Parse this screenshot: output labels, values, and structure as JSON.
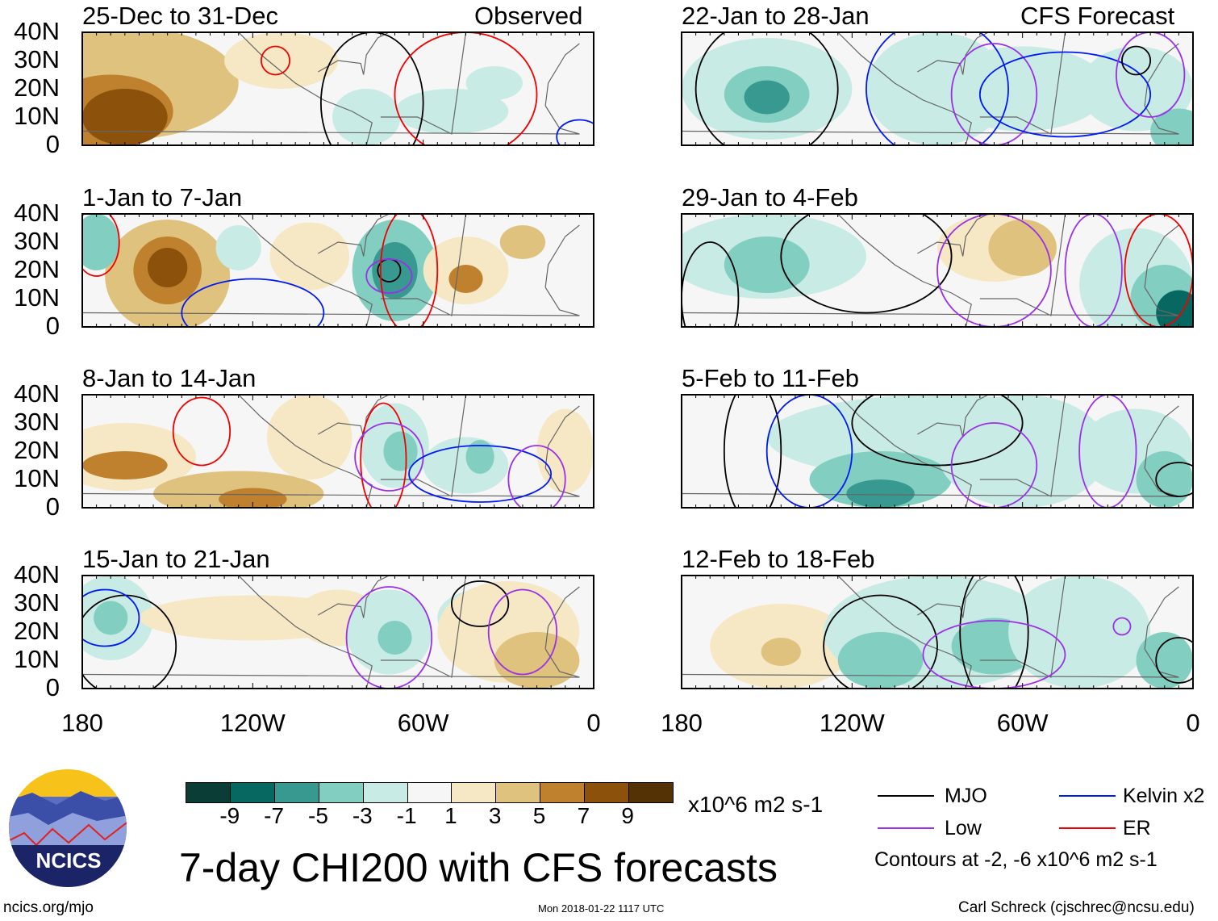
{
  "header": {
    "left_label": "Observed",
    "right_label": "CFS Forecast"
  },
  "lat_labels": [
    "40N",
    "30N",
    "20N",
    "10N",
    "0"
  ],
  "lon_labels": [
    "180",
    "120W",
    "60W",
    "0"
  ],
  "colors": {
    "-10": "#0a3d35",
    "-8": "#066860",
    "-6": "#379990",
    "-4": "#82cfc2",
    "-2": "#c8ebe5",
    "0": "#f6f6f6",
    "2": "#f6e8c4",
    "4": "#dfc27e",
    "6": "#bf812e",
    "8": "#8c510b",
    "10": "#553106"
  },
  "contour_colors": {
    "MJO": "#000000",
    "Low": "#9b30e8",
    "Kelvin": "#0019f5",
    "ER": "#f00000"
  },
  "panels": [
    {
      "title": "25-Dec to 31-Dec",
      "anom": [
        [
          -165,
          22,
          40,
          20,
          4
        ],
        [
          -170,
          12,
          22,
          13,
          6
        ],
        [
          -165,
          10,
          15,
          10,
          8
        ],
        [
          -110,
          30,
          20,
          10,
          2
        ],
        [
          -80,
          10,
          12,
          10,
          -2
        ],
        [
          -50,
          12,
          20,
          8,
          -2
        ],
        [
          -35,
          22,
          10,
          6,
          -2
        ]
      ],
      "cont": [
        [
          "ER",
          -112,
          30,
          5,
          5
        ],
        [
          "MJO",
          -78,
          15,
          18,
          25
        ],
        [
          "ER",
          -45,
          18,
          25,
          22
        ],
        [
          "Kelvin",
          -5,
          3,
          8,
          6
        ]
      ]
    },
    {
      "title": "1-Jan to 7-Jan",
      "anom": [
        [
          -150,
          18,
          22,
          20,
          4
        ],
        [
          -150,
          20,
          12,
          12,
          6
        ],
        [
          -150,
          21,
          7,
          7,
          8
        ],
        [
          -125,
          28,
          8,
          8,
          -3
        ],
        [
          -100,
          25,
          14,
          12,
          2
        ],
        [
          -70,
          20,
          15,
          18,
          -4
        ],
        [
          -70,
          20,
          8,
          10,
          -6
        ],
        [
          -45,
          20,
          15,
          12,
          2
        ],
        [
          -45,
          17,
          6,
          5,
          6
        ],
        [
          -25,
          30,
          8,
          6,
          4
        ],
        [
          -175,
          30,
          8,
          10,
          -4
        ]
      ],
      "cont": [
        [
          "ER",
          -175,
          30,
          8,
          12
        ],
        [
          "Kelvin",
          -120,
          5,
          25,
          12
        ],
        [
          "MJO",
          -72,
          20,
          4,
          4
        ],
        [
          "Low",
          -72,
          18,
          8,
          6
        ],
        [
          "ER",
          -65,
          20,
          10,
          22
        ]
      ]
    },
    {
      "title": "8-Jan to 14-Jan",
      "anom": [
        [
          -165,
          18,
          25,
          12,
          2
        ],
        [
          -165,
          15,
          15,
          5,
          6
        ],
        [
          -125,
          5,
          30,
          8,
          4
        ],
        [
          -120,
          3,
          12,
          4,
          6
        ],
        [
          -100,
          25,
          15,
          15,
          2
        ],
        [
          -70,
          22,
          12,
          15,
          -3
        ],
        [
          -68,
          20,
          6,
          7,
          -5
        ],
        [
          -45,
          15,
          15,
          10,
          -2
        ],
        [
          -40,
          18,
          5,
          6,
          -4
        ],
        [
          -10,
          20,
          10,
          15,
          2
        ]
      ],
      "cont": [
        [
          "ER",
          -138,
          27,
          10,
          12
        ],
        [
          "ER",
          -74,
          17,
          8,
          20
        ],
        [
          "Low",
          -72,
          18,
          12,
          12
        ],
        [
          "Kelvin",
          -40,
          12,
          25,
          10
        ],
        [
          "Low",
          -20,
          10,
          10,
          12
        ]
      ]
    },
    {
      "title": "15-Jan to 21-Jan",
      "anom": [
        [
          -170,
          25,
          15,
          15,
          -3
        ],
        [
          -170,
          25,
          6,
          6,
          -5
        ],
        [
          -120,
          25,
          40,
          8,
          2
        ],
        [
          -90,
          25,
          15,
          10,
          2
        ],
        [
          -72,
          20,
          15,
          15,
          -3
        ],
        [
          -70,
          18,
          6,
          6,
          -5
        ],
        [
          -40,
          25,
          15,
          10,
          -2
        ],
        [
          -30,
          20,
          25,
          18,
          2
        ],
        [
          -20,
          10,
          15,
          10,
          4
        ]
      ],
      "cont": [
        [
          "MJO",
          -165,
          15,
          18,
          18
        ],
        [
          "Kelvin",
          -172,
          25,
          12,
          10
        ],
        [
          "Low",
          -72,
          18,
          15,
          18
        ],
        [
          "MJO",
          -40,
          30,
          10,
          8
        ],
        [
          "Low",
          -25,
          20,
          12,
          15
        ]
      ]
    },
    {
      "title": "22-Jan to 28-Jan",
      "anom": [
        [
          -150,
          20,
          30,
          18,
          -2
        ],
        [
          -150,
          18,
          15,
          10,
          -4
        ],
        [
          -150,
          17,
          8,
          6,
          -6
        ],
        [
          -90,
          20,
          25,
          20,
          -2
        ],
        [
          -60,
          20,
          30,
          15,
          -2
        ],
        [
          -20,
          20,
          20,
          15,
          -2
        ],
        [
          -5,
          5,
          10,
          8,
          -4
        ]
      ],
      "cont": [
        [
          "MJO",
          -150,
          20,
          25,
          25
        ],
        [
          "Kelvin",
          -90,
          20,
          25,
          25
        ],
        [
          "Low",
          -70,
          18,
          15,
          18
        ],
        [
          "Kelvin",
          -45,
          18,
          30,
          15
        ],
        [
          "MJO",
          -20,
          30,
          5,
          5
        ],
        [
          "Low",
          -15,
          25,
          12,
          15
        ]
      ]
    },
    {
      "title": "29-Jan to 4-Feb",
      "anom": [
        [
          -150,
          25,
          35,
          15,
          -2
        ],
        [
          -150,
          22,
          15,
          10,
          -4
        ],
        [
          -70,
          28,
          20,
          12,
          2
        ],
        [
          -60,
          28,
          12,
          10,
          4
        ],
        [
          -20,
          15,
          20,
          20,
          -2
        ],
        [
          -10,
          10,
          12,
          12,
          -4
        ],
        [
          -5,
          5,
          8,
          8,
          -8
        ]
      ],
      "cont": [
        [
          "MJO",
          -170,
          10,
          10,
          20
        ],
        [
          "MJO",
          -115,
          25,
          30,
          20
        ],
        [
          "Low",
          -70,
          20,
          20,
          20
        ],
        [
          "Low",
          -35,
          20,
          10,
          20
        ],
        [
          "ER",
          -12,
          20,
          12,
          20
        ]
      ]
    },
    {
      "title": "5-Feb to 11-Feb",
      "anom": [
        [
          -90,
          25,
          60,
          15,
          -2
        ],
        [
          -110,
          10,
          25,
          10,
          -4
        ],
        [
          -110,
          5,
          12,
          5,
          -6
        ],
        [
          -70,
          18,
          12,
          10,
          -6
        ],
        [
          -60,
          20,
          30,
          20,
          -2
        ],
        [
          -20,
          20,
          20,
          15,
          -2
        ],
        [
          -10,
          10,
          10,
          10,
          -4
        ]
      ],
      "cont": [
        [
          "MJO",
          -155,
          20,
          10,
          25
        ],
        [
          "Kelvin",
          -135,
          20,
          15,
          20
        ],
        [
          "MJO",
          -90,
          30,
          30,
          15
        ],
        [
          "Low",
          -70,
          15,
          15,
          15
        ],
        [
          "Low",
          -30,
          20,
          10,
          20
        ],
        [
          "MJO",
          -5,
          10,
          8,
          6
        ]
      ]
    },
    {
      "title": "12-Feb to 18-Feb",
      "anom": [
        [
          -145,
          15,
          25,
          15,
          2
        ],
        [
          -145,
          13,
          7,
          5,
          4
        ],
        [
          -90,
          20,
          40,
          20,
          -2
        ],
        [
          -110,
          10,
          15,
          10,
          -4
        ],
        [
          -70,
          15,
          15,
          10,
          -4
        ],
        [
          -40,
          20,
          25,
          20,
          -2
        ],
        [
          -10,
          10,
          10,
          10,
          -4
        ]
      ],
      "cont": [
        [
          "MJO",
          -110,
          15,
          20,
          18
        ],
        [
          "MJO",
          -70,
          20,
          12,
          25
        ],
        [
          "Low",
          -70,
          12,
          25,
          12
        ],
        [
          "Low",
          -25,
          22,
          3,
          3
        ],
        [
          "MJO",
          -5,
          10,
          8,
          8
        ]
      ]
    }
  ],
  "colorbar": {
    "labels": [
      "-9",
      "-7",
      "-5",
      "-3",
      "-1",
      "1",
      "3",
      "5",
      "7",
      "9"
    ],
    "units": "x10^6 m2 s-1"
  },
  "legend": {
    "mjo": "MJO",
    "kelvin": "Kelvin x2",
    "low": "Low",
    "er": "ER",
    "note": "Contours at -2, -6 x10^6 m2 s-1"
  },
  "title": "7-day CHI200 with CFS forecasts",
  "logo": {
    "text": "NCICS"
  },
  "footer": {
    "url": "ncics.org/mjo",
    "timestamp": "Mon 2018-01-22 1117 UTC",
    "author": "Carl Schreck (cjschrec@ncsu.edu)"
  }
}
